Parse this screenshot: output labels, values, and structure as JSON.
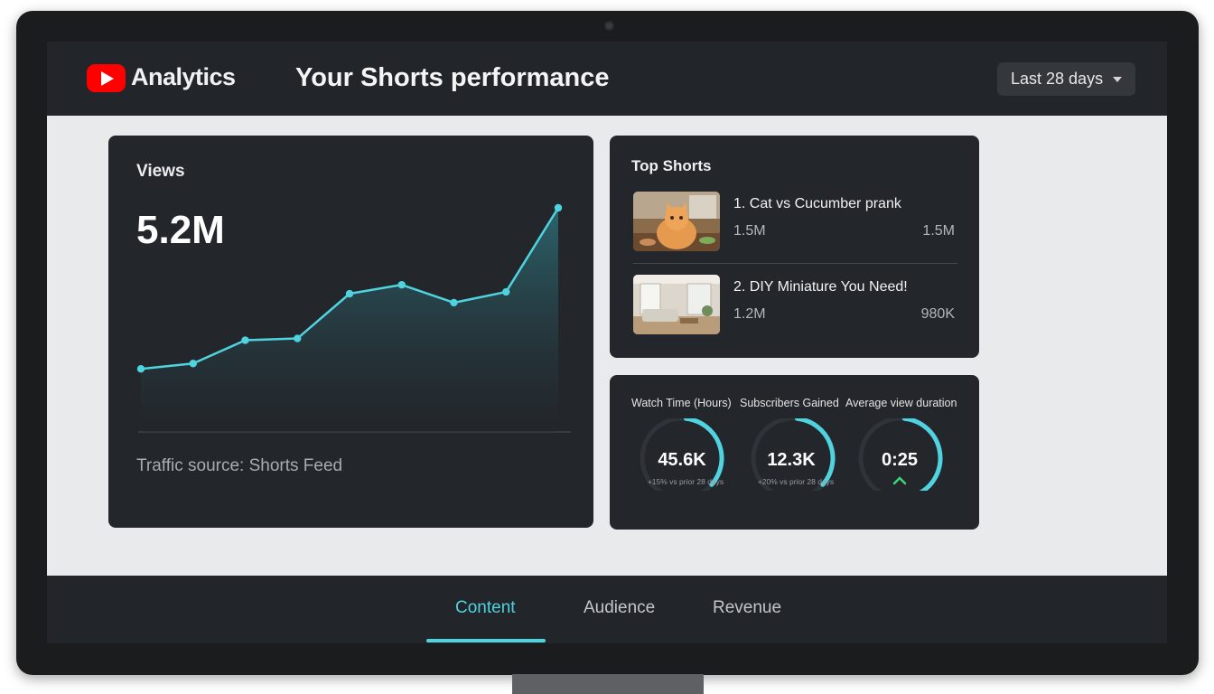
{
  "header": {
    "brand": "Analytics",
    "title": "Your Shorts performance",
    "date_range": "Last 28 days"
  },
  "views_card": {
    "label": "Views",
    "value": "5.2M",
    "footer": "Traffic source: Shorts Feed",
    "trend_points": [
      1.0,
      1.3,
      2.6,
      2.7,
      5.2,
      5.7,
      4.7,
      5.3,
      10.0
    ],
    "accent": "#4fd3df"
  },
  "top_shorts": {
    "title": "Top Shorts",
    "items": [
      {
        "title": "1. Cat vs Cucumber prank",
        "stat_a": "1.5M",
        "stat_b": "1.5M",
        "thumbnail": "cat-photo"
      },
      {
        "title": "2. DIY Miniature You Need!",
        "stat_a": "1.2M",
        "stat_b": "980K",
        "thumbnail": "living-room-photo"
      }
    ]
  },
  "metrics": [
    {
      "label": "Watch Time (Hours)",
      "value": "45.6K",
      "sub": "+15% vs prior 28 days",
      "fill": 0.35
    },
    {
      "label": "Subscribers Gained",
      "value": "12.3K",
      "sub": "+20% vs prior 28 days",
      "fill": 0.35
    },
    {
      "label": "Average view duration",
      "value": "0:25",
      "sub": "",
      "fill": 0.4,
      "trend_icon": "chevron-up-icon"
    }
  ],
  "tabs": [
    {
      "label": "Content",
      "active": true
    },
    {
      "label": "Audience",
      "active": false
    },
    {
      "label": "Revenue",
      "active": false
    }
  ]
}
